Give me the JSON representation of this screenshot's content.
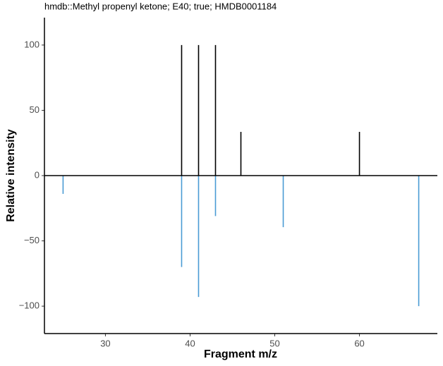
{
  "chart_data": {
    "type": "spectrum",
    "title": "hmdb::Methyl propenyl ketone; E40; true; HMDB0001184",
    "x_label": "Fragment m/z",
    "y_label": "Relative intensity",
    "series": [
      {
        "color": "#000000",
        "x": [
          39,
          41,
          43,
          46,
          60
        ],
        "values": [
          100,
          100,
          100,
          33.5,
          33.5
        ]
      },
      {
        "color": "#4a9bd4",
        "x": [
          25,
          39,
          41,
          43,
          51,
          67
        ],
        "values": [
          -14,
          -70,
          -93,
          -31,
          -39.5,
          -100
        ]
      }
    ],
    "xlim": [
      22.8,
      69.2
    ],
    "xticks": [
      30,
      40,
      50,
      60
    ],
    "ylim": [
      -121,
      121
    ],
    "yticks": [
      {
        "value": -100,
        "label": "−100"
      },
      {
        "value": -50,
        "label": "−50"
      },
      0,
      50,
      100
    ],
    "zero_line": true
  }
}
